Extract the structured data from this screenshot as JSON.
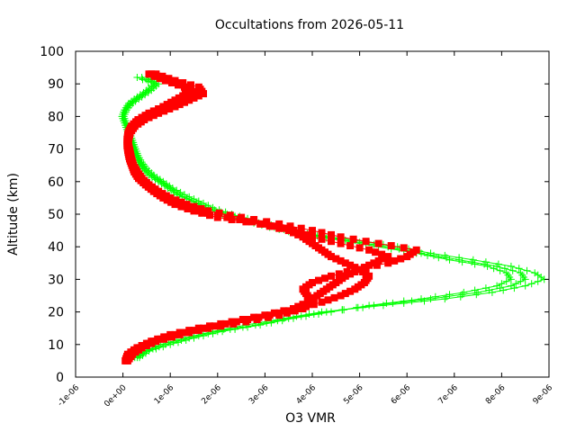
{
  "chart_data": {
    "type": "scatter",
    "title": "Occultations from 2026-05-11",
    "xlabel": "O3 VMR",
    "ylabel": "Altitude (km)",
    "xlim": [
      -1e-06,
      9e-06
    ],
    "ylim": [
      0,
      100
    ],
    "x_ticks": [
      "-1e-06",
      "0e+00",
      "1e-06",
      "2e-06",
      "3e-06",
      "4e-06",
      "5e-06",
      "6e-06",
      "7e-06",
      "8e-06",
      "9e-06"
    ],
    "y_ticks": [
      "0",
      "10",
      "20",
      "30",
      "40",
      "50",
      "60",
      "70",
      "80",
      "90",
      "100"
    ],
    "grid": false,
    "legend": "none",
    "series": [
      {
        "marker": "plus",
        "color": "#00ff00",
        "profiles": [
          {
            "altitude": [
              6,
              8,
              10,
              12,
              14,
              16,
              18,
              20,
              22,
              24,
              26,
              28,
              30,
              32,
              34,
              36,
              38,
              40,
              42,
              44,
              46,
              48,
              50,
              52,
              54,
              56,
              58,
              60,
              62,
              64,
              66,
              68,
              70,
              72,
              74,
              76,
              78,
              80,
              82,
              84,
              86,
              88,
              90,
              92
            ],
            "o3_vmr": [
              3e-07,
              5e-07,
              9e-07,
              1.4e-06,
              2e-06,
              2.8e-06,
              3.5e-06,
              4.3e-06,
              5.3e-06,
              6.5e-06,
              7.5e-06,
              8.2e-06,
              8.5e-06,
              8.4e-06,
              7.9e-06,
              7.1e-06,
              6.3e-06,
              5.6e-06,
              4.7e-06,
              3.8e-06,
              3.2e-06,
              2.7e-06,
              2.2e-06,
              1.8e-06,
              1.5e-06,
              1.2e-06,
              1e-06,
              8e-07,
              6e-07,
              4.5e-07,
              3.5e-07,
              3e-07,
              2.5e-07,
              2e-07,
              1.5e-07,
              1e-07,
              5e-08,
              0.0,
              5e-08,
              1.5e-07,
              3.5e-07,
              5.5e-07,
              7e-07,
              4e-07
            ]
          },
          {
            "altitude": [
              6,
              8,
              10,
              12,
              14,
              16,
              18,
              20,
              22,
              24,
              26,
              28,
              30,
              32,
              34,
              36,
              38,
              40,
              42,
              44,
              46,
              48,
              50,
              52,
              54,
              56,
              58,
              60,
              62,
              64,
              66,
              68,
              70,
              72,
              74,
              76,
              78,
              80,
              82,
              84,
              86,
              88,
              90,
              92
            ],
            "o3_vmr": [
              2.5e-07,
              4.5e-07,
              8e-07,
              1.3e-06,
              1.9e-06,
              2.6e-06,
              3.4e-06,
              4.2e-06,
              5.5e-06,
              6.8e-06,
              7.8e-06,
              8.5e-06,
              8.9e-06,
              8.7e-06,
              8.2e-06,
              7.4e-06,
              6.5e-06,
              5.8e-06,
              4.9e-06,
              3.9e-06,
              3.3e-06,
              2.8e-06,
              2.3e-06,
              1.9e-06,
              1.6e-06,
              1.3e-06,
              1.05e-06,
              8.5e-07,
              6.5e-07,
              5e-07,
              4e-07,
              3.2e-07,
              2.7e-07,
              2.2e-07,
              1.7e-07,
              1.2e-07,
              7e-08,
              2e-08,
              8e-08,
              2e-07,
              4e-07,
              6e-07,
              7.5e-07,
              5e-07
            ]
          },
          {
            "altitude": [
              6,
              8,
              10,
              12,
              14,
              16,
              18,
              20,
              22,
              24,
              26,
              28,
              30,
              32,
              34,
              36,
              38,
              40,
              42,
              44,
              46,
              48,
              50,
              52,
              54,
              56,
              58,
              60,
              62,
              64,
              66,
              68,
              70,
              72,
              74,
              76,
              78,
              80,
              82,
              84,
              86,
              88,
              90,
              92
            ],
            "o3_vmr": [
              3.5e-07,
              5.5e-07,
              1e-06,
              1.5e-06,
              2.1e-06,
              2.9e-06,
              3.6e-06,
              4.4e-06,
              5.2e-06,
              6.3e-06,
              7.2e-06,
              7.9e-06,
              8.2e-06,
              8.1e-06,
              7.7e-06,
              6.9e-06,
              6.2e-06,
              5.4e-06,
              4.6e-06,
              3.7e-06,
              3.1e-06,
              2.6e-06,
              2.1e-06,
              1.75e-06,
              1.45e-06,
              1.15e-06,
              9.5e-07,
              7.5e-07,
              5.5e-07,
              4.2e-07,
              3.3e-07,
              2.8e-07,
              2.3e-07,
              1.8e-07,
              1.3e-07,
              8e-08,
              3e-08,
              -2e-08,
              3e-08,
              1.2e-07,
              3e-07,
              5e-07,
              6.5e-07,
              3e-07
            ]
          }
        ]
      },
      {
        "marker": "filled-square",
        "color": "#ff0000",
        "profiles": [
          {
            "altitude": [
              5,
              7,
              9,
              11,
              13,
              15,
              17,
              19,
              21,
              23,
              25,
              27,
              29,
              31,
              33,
              35,
              37,
              39,
              41,
              43,
              45,
              47,
              49,
              51,
              53,
              55,
              57,
              59,
              61,
              63,
              65,
              67,
              69,
              71,
              73,
              75,
              77,
              79,
              81,
              83,
              85,
              87,
              89,
              91,
              93
            ],
            "o3_vmr": [
              5e-08,
              1e-07,
              3e-07,
              6e-07,
              1e-06,
              1.6e-06,
              2.3e-06,
              3e-06,
              3.6e-06,
              3.9e-06,
              4.1e-06,
              4.3e-06,
              4.5e-06,
              4.7e-06,
              5e-06,
              5.3e-06,
              5.6e-06,
              5.2e-06,
              4.6e-06,
              4e-06,
              3.6e-06,
              3e-06,
              2.2e-06,
              1.6e-06,
              1.2e-06,
              9e-07,
              7e-07,
              5e-07,
              3.5e-07,
              2.5e-07,
              2e-07,
              1.5e-07,
              1.2e-07,
              1e-07,
              1e-07,
              1.2e-07,
              2e-07,
              3.5e-07,
              6e-07,
              9e-07,
              1.2e-06,
              1.5e-06,
              1.4e-06,
              1e-06,
              6e-07
            ]
          },
          {
            "altitude": [
              5,
              7,
              9,
              11,
              13,
              15,
              17,
              19,
              21,
              23,
              25,
              27,
              29,
              31,
              33,
              35,
              37,
              39,
              41,
              43,
              45,
              47,
              49,
              51,
              53,
              55,
              57,
              59,
              61,
              63,
              65,
              67,
              69,
              71,
              73,
              75,
              77,
              79,
              81,
              83,
              85,
              87,
              89,
              91,
              93
            ],
            "o3_vmr": [
              1e-07,
              2e-07,
              4e-07,
              7e-07,
              1.2e-06,
              1.8e-06,
              2.6e-06,
              3.3e-06,
              3.8e-06,
              4e-06,
              3.9e-06,
              3.8e-06,
              4e-06,
              4.4e-06,
              4.9e-06,
              5.6e-06,
              6e-06,
              6.2e-06,
              5.4e-06,
              4.6e-06,
              4e-06,
              3.3e-06,
              2.5e-06,
              1.8e-06,
              1.35e-06,
              1e-06,
              7.5e-07,
              5.5e-07,
              4e-07,
              3e-07,
              2.2e-07,
              1.8e-07,
              1.5e-07,
              1.2e-07,
              1.2e-07,
              1.5e-07,
              2.5e-07,
              4.5e-07,
              7.5e-07,
              1.1e-06,
              1.4e-06,
              1.7e-06,
              1.6e-06,
              1.1e-06,
              7e-07
            ]
          },
          {
            "altitude": [
              5,
              7,
              9,
              11,
              13,
              15,
              17,
              19,
              21,
              23,
              25,
              27,
              29,
              31,
              33,
              35,
              37,
              39,
              41,
              43,
              45,
              47,
              49,
              51,
              53,
              55,
              57,
              59,
              61,
              63,
              65,
              67,
              69,
              71,
              73,
              75,
              77,
              79,
              81,
              83,
              85,
              87,
              89,
              91,
              93
            ],
            "o3_vmr": [
              8e-08,
              1.5e-07,
              3.5e-07,
              6.5e-07,
              1.1e-06,
              1.7e-06,
              2.4e-06,
              3.1e-06,
              3.7e-06,
              4.2e-06,
              4.6e-06,
              4.9e-06,
              5.1e-06,
              5.2e-06,
              5e-06,
              4.7e-06,
              4.4e-06,
              4.2e-06,
              4e-06,
              3.8e-06,
              3.5e-06,
              2.9e-06,
              2e-06,
              1.5e-06,
              1.1e-06,
              8.5e-07,
              6.5e-07,
              4.8e-07,
              3.3e-07,
              2.4e-07,
              1.9e-07,
              1.4e-07,
              1.1e-07,
              9e-08,
              9e-08,
              1.1e-07,
              1.8e-07,
              3.2e-07,
              5.5e-07,
              8.5e-07,
              1.1e-06,
              1.35e-06,
              1.3e-06,
              9e-07,
              5.5e-07
            ]
          }
        ]
      }
    ]
  }
}
